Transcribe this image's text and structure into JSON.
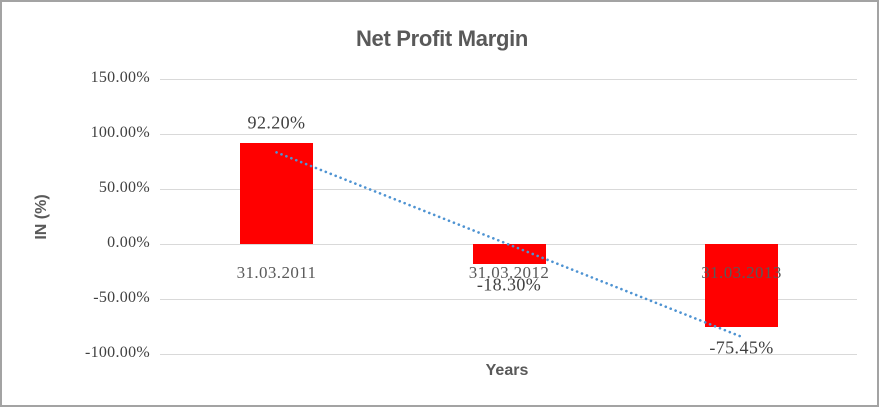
{
  "window": {
    "background": "#ffffff",
    "border_color": "#a3a3a3"
  },
  "chart_data": {
    "type": "bar",
    "title": "Net Profit Margin",
    "xlabel": "Years",
    "ylabel": "IN (%)",
    "categories": [
      "31.03.2011",
      "31.03.2012",
      "31.03.2013"
    ],
    "values": [
      92.2,
      -18.3,
      -75.45
    ],
    "data_labels": [
      "92.20%",
      "-18.30%",
      "-75.45%"
    ],
    "yticks": [
      {
        "value": 150,
        "label": "150.00%"
      },
      {
        "value": 100,
        "label": "100.00%"
      },
      {
        "value": 50,
        "label": "50.00%"
      },
      {
        "value": 0,
        "label": "0.00%"
      },
      {
        "value": -50,
        "label": "-50.00%"
      },
      {
        "value": -100,
        "label": "-100.00%"
      }
    ],
    "ylim": [
      -100,
      150
    ],
    "grid": true,
    "legend": "none",
    "bar_color": "#FF0000",
    "gridline_color": "#d9d9d9",
    "trendline": {
      "type": "linear",
      "style": "dotted",
      "color": "#4E93D2",
      "fitted_endpoints_pct": [
        83.32,
        -84.34
      ]
    },
    "text_colors": {
      "title": "#595959",
      "axis_titles": "#595959",
      "tick_labels": "#404040",
      "category_labels": "#595959",
      "data_labels": "#404040"
    }
  }
}
